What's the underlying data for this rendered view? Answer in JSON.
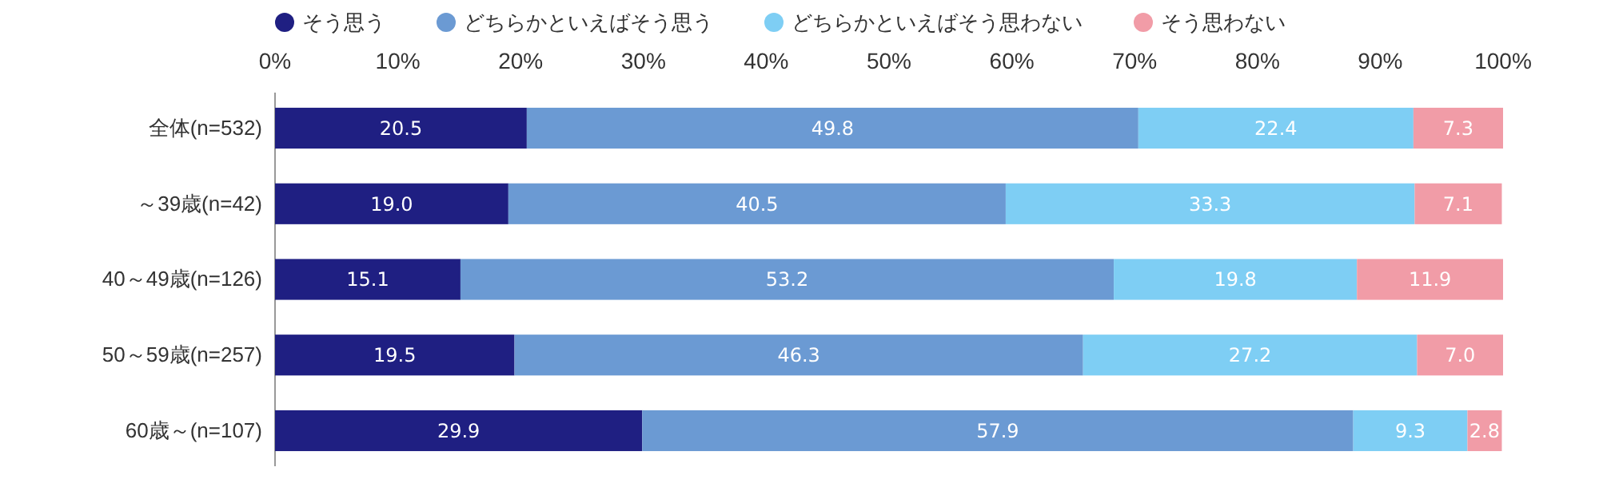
{
  "chart_data": {
    "type": "bar",
    "orientation": "horizontal",
    "stacked": true,
    "categories": [
      "全体(n=532)",
      "～39歳(n=42)",
      "40～49歳(n=126)",
      "50～59歳(n=257)",
      "60歳～(n=107)"
    ],
    "series": [
      {
        "name": "そう思う",
        "color": "#1f1f82",
        "values": [
          20.5,
          19.0,
          15.1,
          19.5,
          29.9
        ],
        "value_labels": [
          "20.5",
          "19.0",
          "15.1",
          "19.5",
          "29.9"
        ]
      },
      {
        "name": "どちらかといえばそう思う",
        "color": "#6b9ad3",
        "values": [
          49.8,
          40.5,
          53.2,
          46.3,
          57.9
        ],
        "value_labels": [
          "49.8",
          "40.5",
          "53.2",
          "46.3",
          "57.9"
        ]
      },
      {
        "name": "どちらかといえばそう思わない",
        "color": "#7ecef4",
        "values": [
          22.4,
          33.3,
          19.8,
          27.2,
          9.3
        ],
        "value_labels": [
          "22.4",
          "33.3",
          "19.8",
          "27.2",
          "9.3"
        ]
      },
      {
        "name": "そう思わない",
        "color": "#f19ca7",
        "values": [
          7.3,
          7.1,
          11.9,
          7.0,
          2.8
        ],
        "value_labels": [
          "7.3",
          "7.1",
          "11.9",
          "7.0",
          "2.8"
        ]
      }
    ],
    "xlim": [
      0,
      100
    ],
    "xticks": [
      {
        "value": 0,
        "label": "0%"
      },
      {
        "value": 10,
        "label": "10%"
      },
      {
        "value": 20,
        "label": "20%"
      },
      {
        "value": 30,
        "label": "30%"
      },
      {
        "value": 40,
        "label": "40%"
      },
      {
        "value": 50,
        "label": "50%"
      },
      {
        "value": 60,
        "label": "60%"
      },
      {
        "value": 70,
        "label": "70%"
      },
      {
        "value": 80,
        "label": "80%"
      },
      {
        "value": 90,
        "label": "90%"
      },
      {
        "value": 100,
        "label": "100%"
      }
    ],
    "legend": "top"
  }
}
